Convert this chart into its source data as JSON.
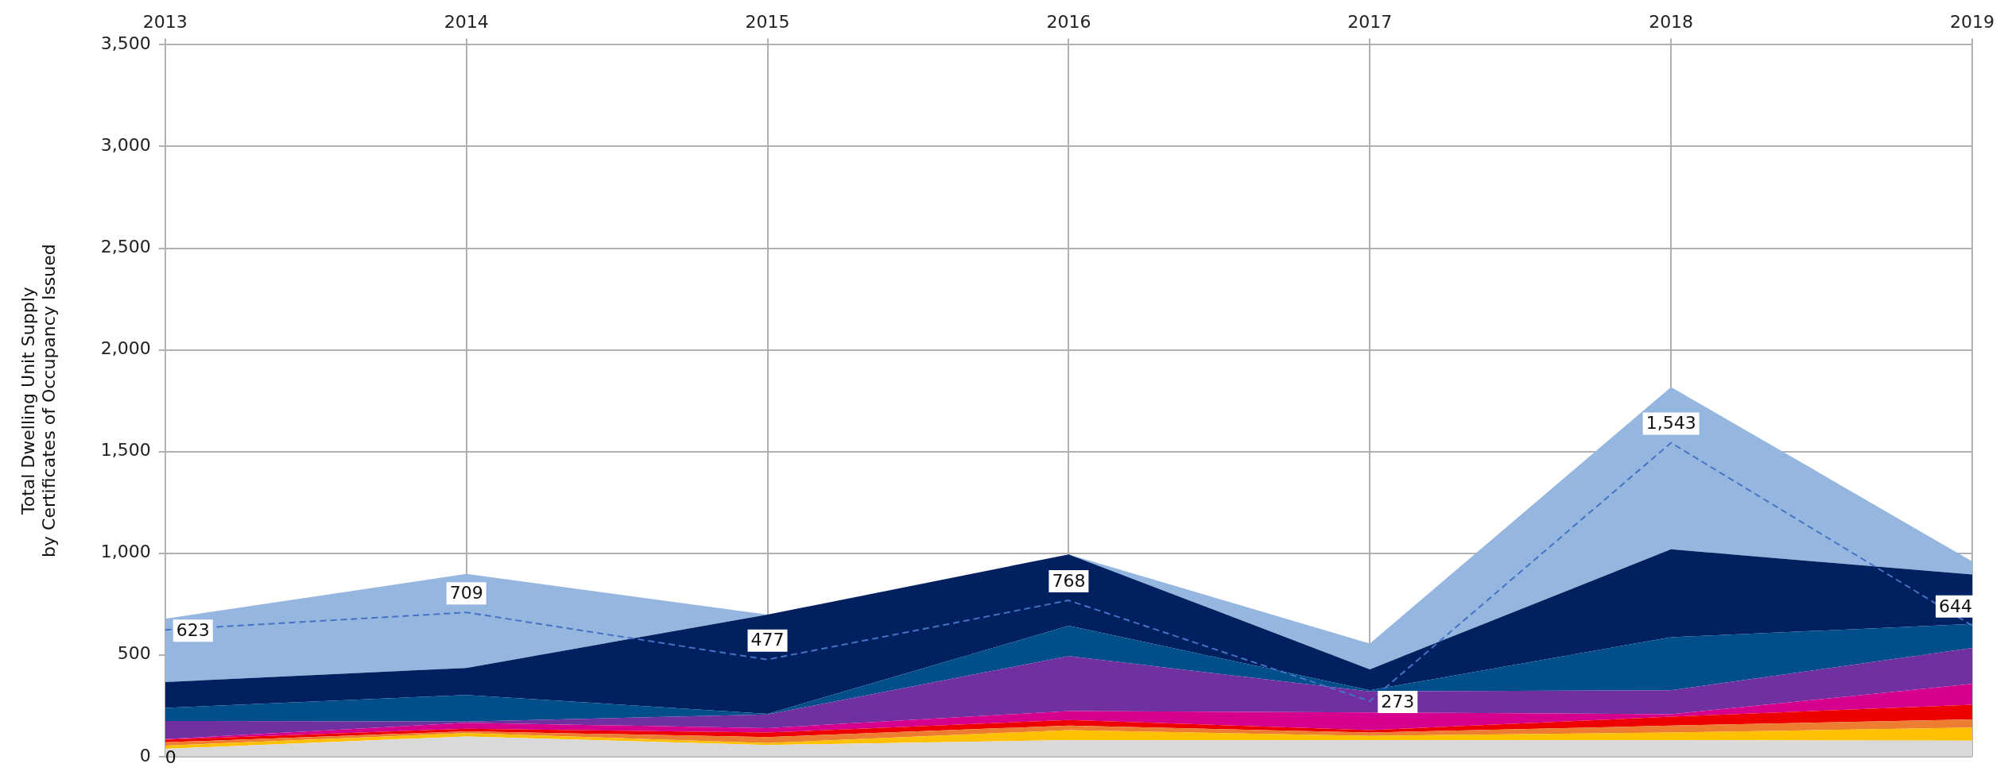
{
  "chart_data": {
    "type": "area",
    "stacked": true,
    "ylabel": "Total Dwelling Unit Supply\nby Certificates of Occupancy Issued",
    "categories": [
      "2013",
      "2014",
      "2015",
      "2016",
      "2017",
      "2018",
      "2019"
    ],
    "series": [
      {
        "color": "#d9d9d9",
        "values": [
          38,
          99,
          57,
          81,
          81,
          81,
          78
        ]
      },
      {
        "color": "#ffc000",
        "values": [
          16,
          16,
          10,
          49,
          21,
          37,
          65
        ]
      },
      {
        "color": "#ed7d31",
        "values": [
          16,
          9,
          29,
          22,
          16,
          34,
          40
        ]
      },
      {
        "color": "#ee0000",
        "values": [
          13,
          13,
          22,
          28,
          12,
          44,
          72
        ]
      },
      {
        "color": "#d6008f",
        "values": [
          3,
          29,
          22,
          44,
          87,
          12,
          102
        ]
      },
      {
        "color": "#7030a0",
        "values": [
          89,
          6,
          67,
          270,
          103,
          118,
          177
        ]
      },
      {
        "color": "#004f8b",
        "values": [
          64,
          131,
          3,
          149,
          6,
          261,
          118
        ]
      },
      {
        "color": "#002060",
        "values": [
          127,
          133,
          488,
          351,
          103,
          432,
          243
        ]
      },
      {
        "color": "#95b7df",
        "values": [
          312,
          462,
          0,
          0,
          127,
          798,
          65
        ]
      },
      {
        "type": "line",
        "color": "#4472c4",
        "line_style": "dashed",
        "marker": "none",
        "values": [
          623,
          709,
          477,
          768,
          273,
          1543,
          644
        ],
        "value_labels": [
          "623",
          "709",
          "477",
          "768",
          "273",
          "1,543",
          "644"
        ]
      }
    ],
    "ylim": [
      0,
      3500
    ],
    "yticks": [
      {
        "value": 0,
        "label": "0"
      },
      {
        "value": 500,
        "label": "500"
      },
      {
        "value": 1000,
        "label": "1,000"
      },
      {
        "value": 1500,
        "label": "1,500"
      },
      {
        "value": 2000,
        "label": "2,000"
      },
      {
        "value": 2500,
        "label": "2,500"
      },
      {
        "value": 3000,
        "label": "3,000"
      },
      {
        "value": 3500,
        "label": "3,500"
      }
    ],
    "grid": true,
    "legend": false,
    "annotations": [
      {
        "text": "0",
        "x": "2013",
        "y": 0
      }
    ]
  }
}
